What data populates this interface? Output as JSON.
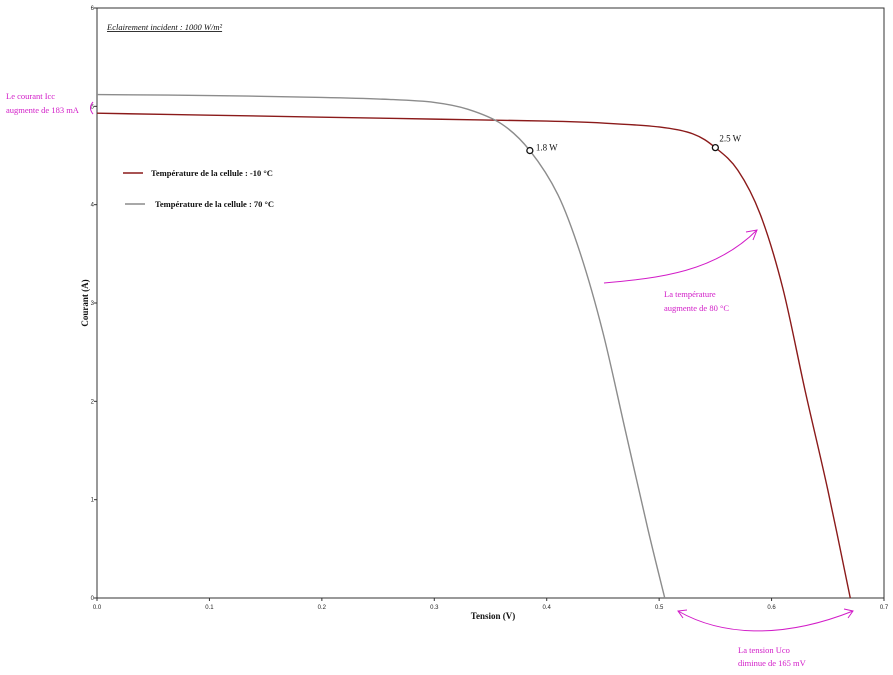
{
  "chart_data": {
    "type": "line",
    "title": "Eclairement incident : 1000 W/m²",
    "xlabel": "Tension (V)",
    "ylabel": "Courant (A)",
    "xlim": [
      0,
      0.7
    ],
    "ylim": [
      0,
      6
    ],
    "x_ticks": [
      "0.0",
      "0.1",
      "0.2",
      "0.3",
      "0.4",
      "0.5",
      "0.6",
      "0.7"
    ],
    "y_ticks": [
      "0",
      "1",
      "2",
      "3",
      "4",
      "5",
      "6"
    ],
    "grid": false,
    "legend_position": "top-left",
    "series": [
      {
        "name": "Température de la cellule : -10 °C",
        "color": "#8b1a1a",
        "x": [
          0.0,
          0.1,
          0.2,
          0.3,
          0.4,
          0.45,
          0.5,
          0.53,
          0.55,
          0.57,
          0.59,
          0.61,
          0.63,
          0.65,
          0.67
        ],
        "y": [
          4.93,
          4.91,
          4.89,
          4.87,
          4.85,
          4.83,
          4.79,
          4.72,
          4.58,
          4.35,
          3.9,
          3.15,
          2.1,
          1.1,
          0.0
        ]
      },
      {
        "name": "Température de la cellule : 70 °C",
        "color": "#8c8c8c",
        "x": [
          0.0,
          0.1,
          0.2,
          0.26,
          0.3,
          0.33,
          0.36,
          0.385,
          0.41,
          0.43,
          0.45,
          0.47,
          0.49,
          0.505
        ],
        "y": [
          5.12,
          5.11,
          5.09,
          5.07,
          5.04,
          4.97,
          4.82,
          4.55,
          4.1,
          3.5,
          2.7,
          1.7,
          0.7,
          0.0
        ]
      }
    ],
    "markers": [
      {
        "x": 0.385,
        "y": 4.55,
        "label": "1.8 W"
      },
      {
        "x": 0.55,
        "y": 4.58,
        "label": "2.5 W"
      }
    ],
    "annotations": {
      "icc": [
        "Le courant Icc",
        "augmente de 183 mA"
      ],
      "temp": [
        "La température",
        "augmente de 80 °C"
      ],
      "uco": [
        "La tension Uco",
        "diminue de 165 mV"
      ]
    },
    "annotation_color": "#d21cc8"
  }
}
